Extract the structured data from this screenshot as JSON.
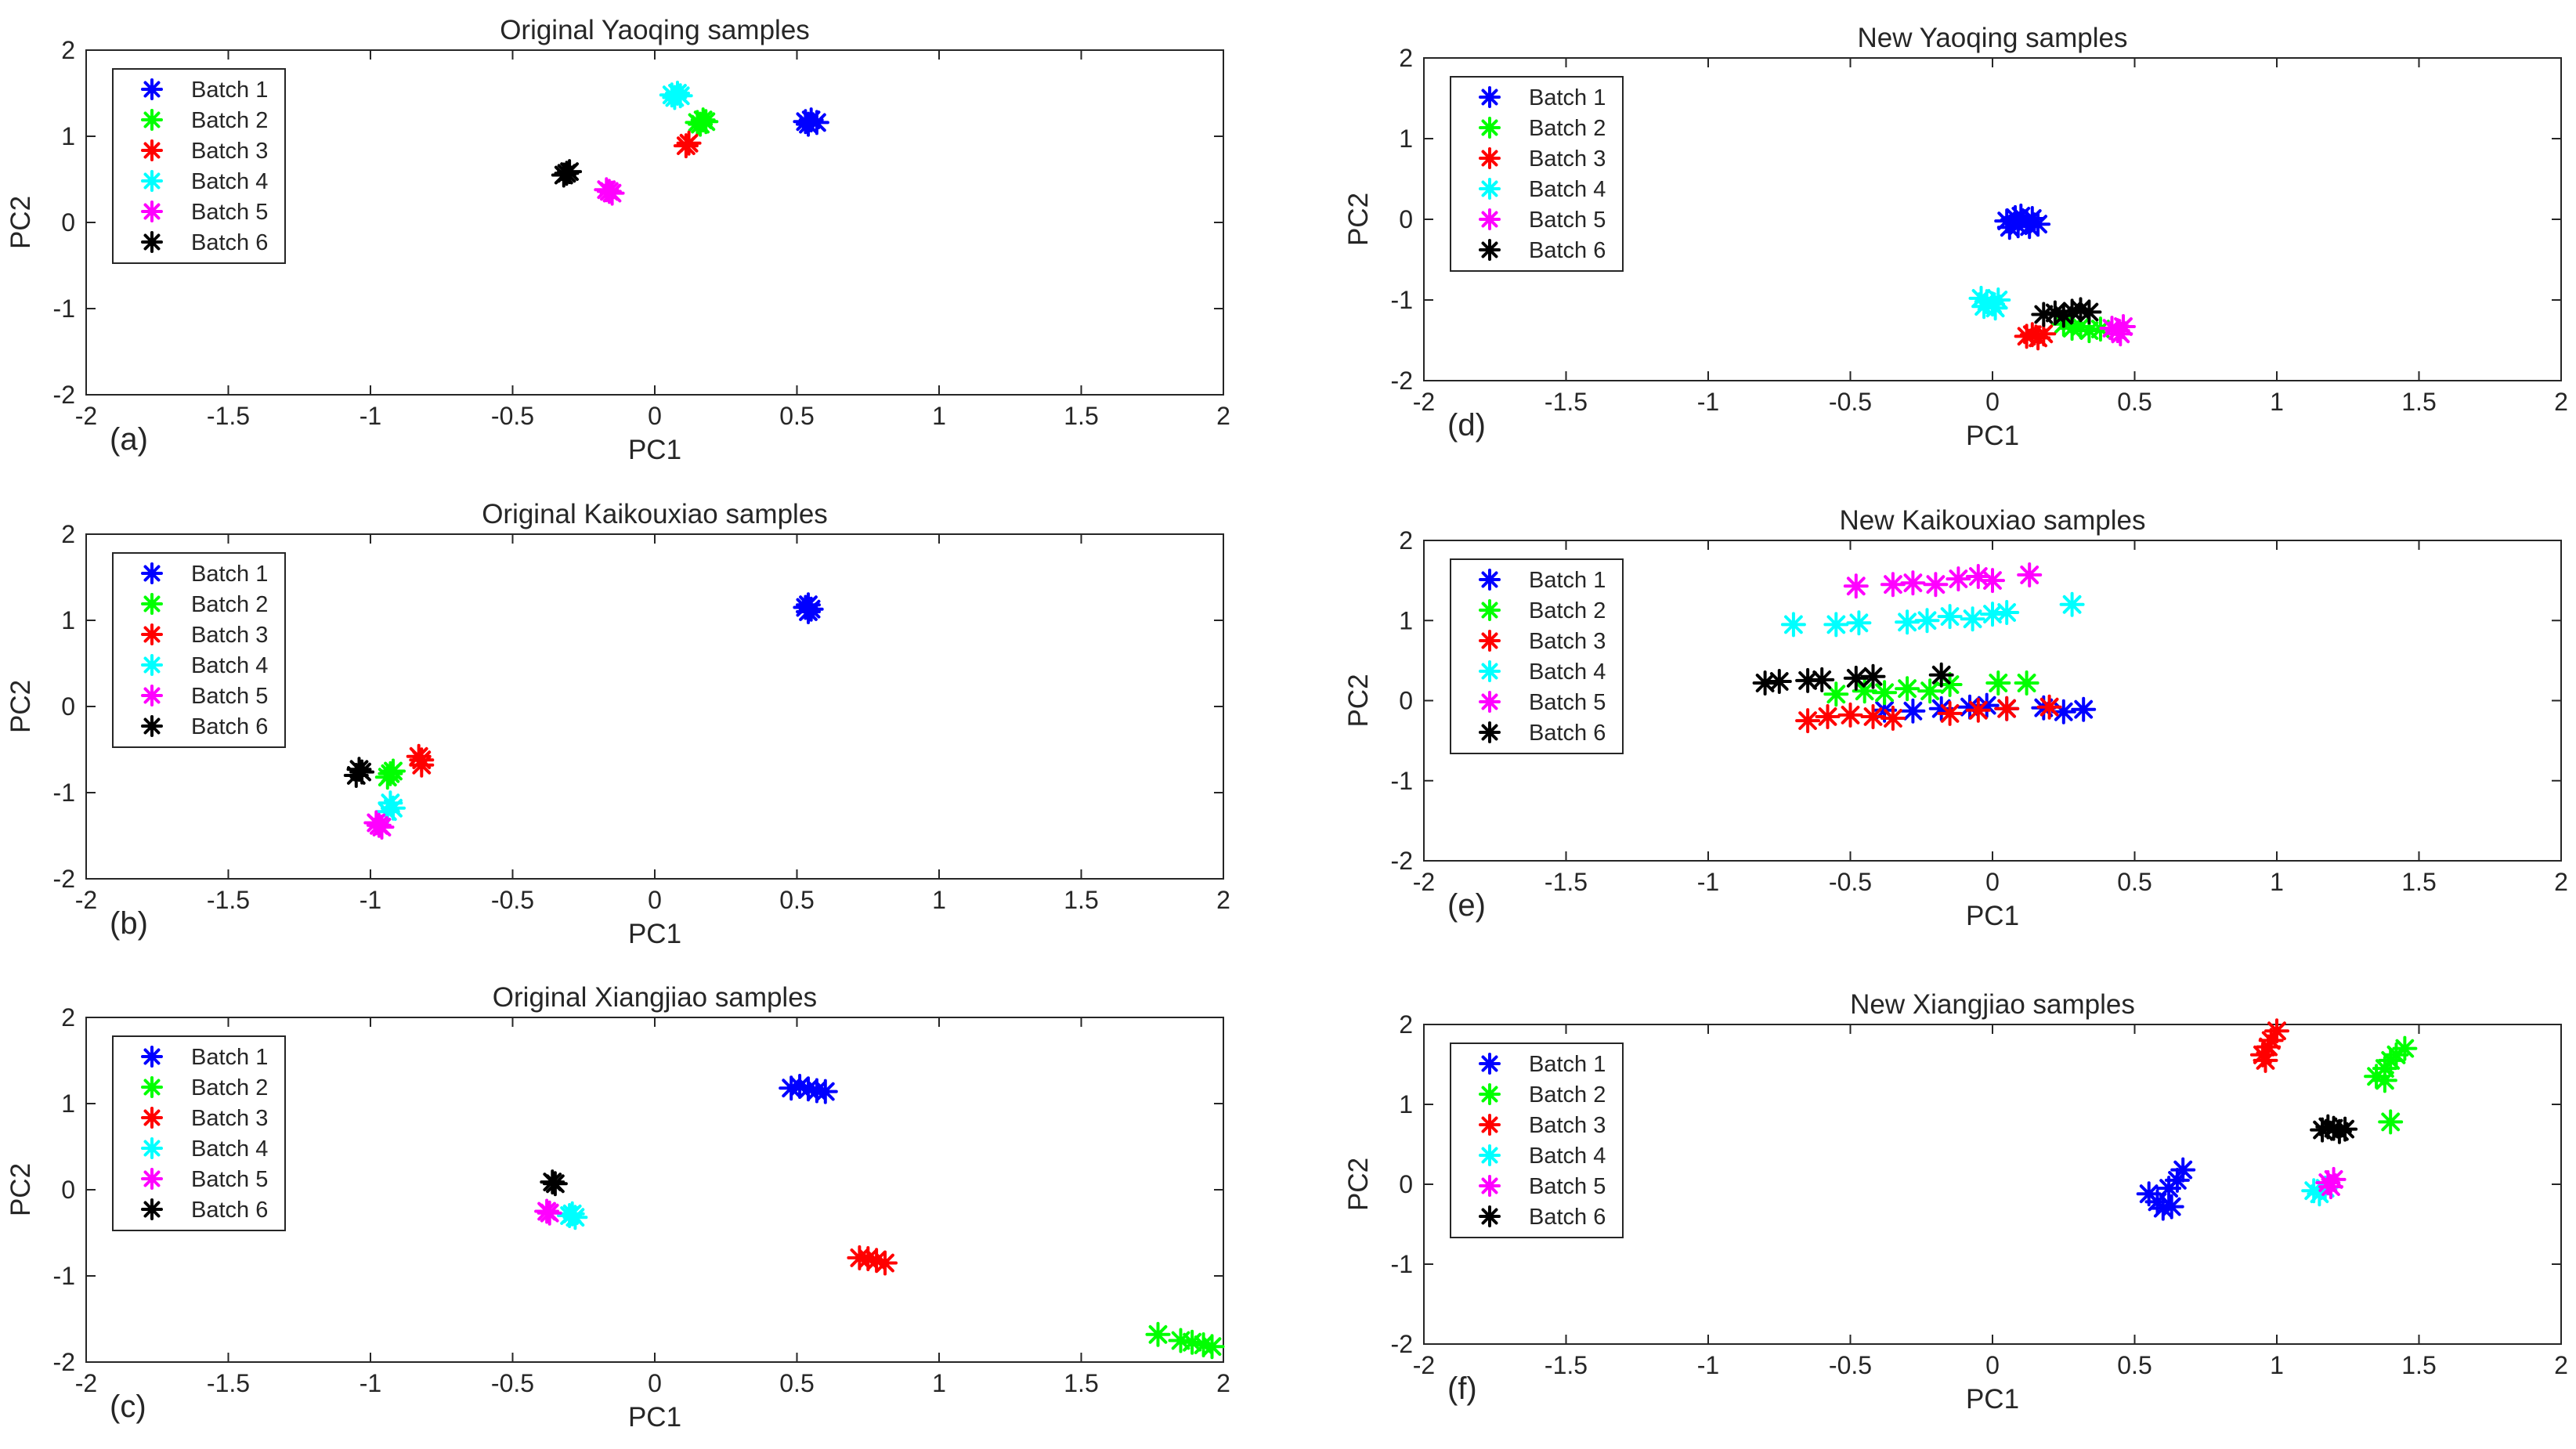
{
  "chart_data": [
    {
      "panel_label": "(a)",
      "type": "scatter",
      "title": "Original Yaoqing samples",
      "xlabel": "PC1",
      "ylabel": "PC2",
      "xlim": [
        -2,
        2
      ],
      "ylim": [
        -2,
        2
      ],
      "xticks": [
        "-2",
        "-1.5",
        "-1",
        "-0.5",
        "0",
        "0.5",
        "1",
        "1.5",
        "2"
      ],
      "yticks": [
        "-2",
        "-1",
        "0",
        "1",
        "2"
      ],
      "marker": "*",
      "legend_position": "top-left",
      "series": [
        {
          "name": "Batch 1",
          "color": "#0000ff",
          "points": [
            [
              0.53,
              1.17
            ],
            [
              0.55,
              1.19
            ],
            [
              0.54,
              1.14
            ],
            [
              0.57,
              1.16
            ]
          ]
        },
        {
          "name": "Batch 2",
          "color": "#00ff00",
          "points": [
            [
              0.15,
              1.16
            ],
            [
              0.17,
              1.19
            ],
            [
              0.16,
              1.14
            ],
            [
              0.18,
              1.17
            ]
          ]
        },
        {
          "name": "Batch 3",
          "color": "#ff0000",
          "points": [
            [
              0.11,
              0.89
            ],
            [
              0.12,
              0.92
            ]
          ]
        },
        {
          "name": "Batch 4",
          "color": "#00ffff",
          "points": [
            [
              0.06,
              1.48
            ],
            [
              0.08,
              1.5
            ],
            [
              0.07,
              1.45
            ],
            [
              0.09,
              1.47
            ]
          ]
        },
        {
          "name": "Batch 5",
          "color": "#ff00ff",
          "points": [
            [
              -0.16,
              0.36
            ],
            [
              -0.15,
              0.34
            ],
            [
              -0.17,
              0.38
            ]
          ]
        },
        {
          "name": "Batch 6",
          "color": "#000000",
          "points": [
            [
              -0.31,
              0.57
            ],
            [
              -0.3,
              0.59
            ],
            [
              -0.32,
              0.55
            ]
          ]
        }
      ]
    },
    {
      "panel_label": "(b)",
      "type": "scatter",
      "title": "Original Kaikouxiao samples",
      "xlabel": "PC1",
      "ylabel": "PC2",
      "xlim": [
        -2,
        2
      ],
      "ylim": [
        -2,
        2
      ],
      "xticks": [
        "-2",
        "-1.5",
        "-1",
        "-0.5",
        "0",
        "0.5",
        "1",
        "1.5",
        "2"
      ],
      "yticks": [
        "-2",
        "-1",
        "0",
        "1",
        "2"
      ],
      "marker": "*",
      "legend_position": "top-left",
      "series": [
        {
          "name": "Batch 1",
          "color": "#0000ff",
          "points": [
            [
              0.53,
              1.15
            ],
            [
              0.54,
              1.18
            ],
            [
              0.55,
              1.13
            ],
            [
              0.54,
              1.1
            ]
          ]
        },
        {
          "name": "Batch 2",
          "color": "#00ff00",
          "points": [
            [
              -0.93,
              -0.78
            ],
            [
              -0.92,
              -0.75
            ],
            [
              -0.94,
              -0.82
            ]
          ]
        },
        {
          "name": "Batch 3",
          "color": "#ff0000",
          "points": [
            [
              -0.82,
              -0.62
            ],
            [
              -0.82,
              -0.68
            ],
            [
              -0.83,
              -0.58
            ]
          ]
        },
        {
          "name": "Batch 4",
          "color": "#00ffff",
          "points": [
            [
              -0.93,
              -1.12
            ],
            [
              -0.92,
              -1.18
            ],
            [
              -0.94,
              -1.22
            ]
          ]
        },
        {
          "name": "Batch 5",
          "color": "#ff00ff",
          "points": [
            [
              -0.97,
              -1.38
            ],
            [
              -0.96,
              -1.4
            ],
            [
              -0.98,
              -1.35
            ]
          ]
        },
        {
          "name": "Batch 6",
          "color": "#000000",
          "points": [
            [
              -1.04,
              -0.73
            ],
            [
              -1.03,
              -0.76
            ],
            [
              -1.05,
              -0.8
            ]
          ]
        }
      ]
    },
    {
      "panel_label": "(c)",
      "type": "scatter",
      "title": "Original Xiangjiao samples",
      "xlabel": "PC1",
      "ylabel": "PC2",
      "xlim": [
        -2,
        2
      ],
      "ylim": [
        -2,
        2
      ],
      "xticks": [
        "-2",
        "-1.5",
        "-1",
        "-0.5",
        "0",
        "0.5",
        "1",
        "1.5",
        "2"
      ],
      "yticks": [
        "-2",
        "-1",
        "0",
        "1",
        "2"
      ],
      "marker": "*",
      "legend_position": "top-left",
      "series": [
        {
          "name": "Batch 1",
          "color": "#0000ff",
          "points": [
            [
              0.48,
              1.18
            ],
            [
              0.51,
              1.2
            ],
            [
              0.54,
              1.17
            ],
            [
              0.57,
              1.15
            ],
            [
              0.6,
              1.14
            ]
          ]
        },
        {
          "name": "Batch 2",
          "color": "#00ff00",
          "points": [
            [
              1.77,
              -1.68
            ],
            [
              1.85,
              -1.75
            ],
            [
              1.89,
              -1.77
            ],
            [
              1.93,
              -1.8
            ],
            [
              1.96,
              -1.82
            ]
          ]
        },
        {
          "name": "Batch 3",
          "color": "#ff0000",
          "points": [
            [
              0.72,
              -0.79
            ],
            [
              0.75,
              -0.8
            ],
            [
              0.78,
              -0.82
            ],
            [
              0.81,
              -0.85
            ]
          ]
        },
        {
          "name": "Batch 4",
          "color": "#00ffff",
          "points": [
            [
              -0.3,
              -0.3
            ],
            [
              -0.28,
              -0.32
            ],
            [
              -0.29,
              -0.28
            ]
          ]
        },
        {
          "name": "Batch 5",
          "color": "#ff00ff",
          "points": [
            [
              -0.38,
              -0.25
            ],
            [
              -0.37,
              -0.27
            ]
          ]
        },
        {
          "name": "Batch 6",
          "color": "#000000",
          "points": [
            [
              -0.35,
              0.07
            ],
            [
              -0.36,
              0.09
            ]
          ]
        }
      ]
    },
    {
      "panel_label": "(d)",
      "type": "scatter",
      "title": "New Yaoqing samples",
      "xlabel": "PC1",
      "ylabel": "PC2",
      "xlim": [
        -2,
        2
      ],
      "ylim": [
        -2,
        2
      ],
      "xticks": [
        "-2",
        "-1.5",
        "-1",
        "-0.5",
        "0",
        "0.5",
        "1",
        "1.5",
        "2"
      ],
      "yticks": [
        "-2",
        "-1",
        "0",
        "1",
        "2"
      ],
      "marker": "*",
      "legend_position": "top-left",
      "series": [
        {
          "name": "Batch 1",
          "color": "#0000ff",
          "points": [
            [
              0.05,
              -0.02
            ],
            [
              0.08,
              0.02
            ],
            [
              0.1,
              0.04
            ],
            [
              0.12,
              -0.03
            ],
            [
              0.14,
              0.01
            ],
            [
              0.16,
              -0.06
            ],
            [
              0.09,
              -0.08
            ],
            [
              0.06,
              -0.1
            ],
            [
              0.13,
              -0.09
            ]
          ]
        },
        {
          "name": "Batch 2",
          "color": "#00ff00",
          "points": [
            [
              0.25,
              -1.3
            ],
            [
              0.28,
              -1.35
            ],
            [
              0.31,
              -1.33
            ],
            [
              0.34,
              -1.38
            ],
            [
              0.38,
              -1.36
            ]
          ]
        },
        {
          "name": "Batch 3",
          "color": "#ff0000",
          "points": [
            [
              0.12,
              -1.45
            ],
            [
              0.14,
              -1.43
            ],
            [
              0.16,
              -1.47
            ],
            [
              0.18,
              -1.42
            ]
          ]
        },
        {
          "name": "Batch 4",
          "color": "#00ffff",
          "points": [
            [
              -0.04,
              -0.98
            ],
            [
              -0.02,
              -1.02
            ],
            [
              0.0,
              -1.05
            ],
            [
              0.02,
              -1.0
            ],
            [
              -0.03,
              -1.08
            ],
            [
              0.01,
              -1.1
            ]
          ]
        },
        {
          "name": "Batch 5",
          "color": "#ff00ff",
          "points": [
            [
              0.42,
              -1.35
            ],
            [
              0.44,
              -1.38
            ],
            [
              0.46,
              -1.33
            ],
            [
              0.45,
              -1.42
            ]
          ]
        },
        {
          "name": "Batch 6",
          "color": "#000000",
          "points": [
            [
              0.18,
              -1.18
            ],
            [
              0.22,
              -1.16
            ],
            [
              0.25,
              -1.19
            ],
            [
              0.28,
              -1.14
            ],
            [
              0.31,
              -1.12
            ],
            [
              0.34,
              -1.15
            ]
          ]
        }
      ]
    },
    {
      "panel_label": "(e)",
      "type": "scatter",
      "title": "New Kaikouxiao samples",
      "xlabel": "PC1",
      "ylabel": "PC2",
      "xlim": [
        -2,
        2
      ],
      "ylim": [
        -2,
        2
      ],
      "xticks": [
        "-2",
        "-1.5",
        "-1",
        "-0.5",
        "0",
        "0.5",
        "1",
        "1.5",
        "2"
      ],
      "yticks": [
        "-2",
        "-1",
        "0",
        "1",
        "2"
      ],
      "marker": "*",
      "legend_position": "top-left",
      "series": [
        {
          "name": "Batch 1",
          "color": "#0000ff",
          "points": [
            [
              -0.38,
              -0.12
            ],
            [
              -0.28,
              -0.13
            ],
            [
              -0.18,
              -0.1
            ],
            [
              -0.08,
              -0.08
            ],
            [
              -0.02,
              -0.06
            ],
            [
              0.05,
              -0.1
            ],
            [
              0.18,
              -0.09
            ],
            [
              0.25,
              -0.14
            ],
            [
              0.32,
              -0.11
            ]
          ]
        },
        {
          "name": "Batch 2",
          "color": "#00ff00",
          "points": [
            [
              -0.55,
              0.08
            ],
            [
              -0.45,
              0.12
            ],
            [
              -0.38,
              0.1
            ],
            [
              -0.3,
              0.15
            ],
            [
              -0.22,
              0.12
            ],
            [
              -0.15,
              0.2
            ],
            [
              0.02,
              0.22
            ],
            [
              0.12,
              0.22
            ]
          ]
        },
        {
          "name": "Batch 3",
          "color": "#ff0000",
          "points": [
            [
              -0.65,
              -0.25
            ],
            [
              -0.58,
              -0.2
            ],
            [
              -0.5,
              -0.18
            ],
            [
              -0.42,
              -0.2
            ],
            [
              -0.35,
              -0.22
            ],
            [
              -0.15,
              -0.16
            ],
            [
              -0.05,
              -0.12
            ],
            [
              0.05,
              -0.1
            ],
            [
              0.2,
              -0.08
            ]
          ]
        },
        {
          "name": "Batch 4",
          "color": "#00ffff",
          "points": [
            [
              -0.7,
              0.95
            ],
            [
              -0.55,
              0.95
            ],
            [
              -0.47,
              0.97
            ],
            [
              -0.3,
              0.98
            ],
            [
              -0.23,
              1.0
            ],
            [
              -0.15,
              1.05
            ],
            [
              -0.07,
              1.02
            ],
            [
              0.0,
              1.08
            ],
            [
              0.05,
              1.1
            ],
            [
              0.28,
              1.2
            ]
          ]
        },
        {
          "name": "Batch 5",
          "color": "#ff00ff",
          "points": [
            [
              -0.48,
              1.43
            ],
            [
              -0.35,
              1.45
            ],
            [
              -0.28,
              1.47
            ],
            [
              -0.2,
              1.45
            ],
            [
              -0.12,
              1.52
            ],
            [
              -0.05,
              1.55
            ],
            [
              0.0,
              1.5
            ],
            [
              0.13,
              1.57
            ]
          ]
        },
        {
          "name": "Batch 6",
          "color": "#000000",
          "points": [
            [
              -0.8,
              0.22
            ],
            [
              -0.75,
              0.24
            ],
            [
              -0.65,
              0.25
            ],
            [
              -0.6,
              0.26
            ],
            [
              -0.48,
              0.28
            ],
            [
              -0.42,
              0.3
            ],
            [
              -0.18,
              0.32
            ]
          ]
        }
      ]
    },
    {
      "panel_label": "(f)",
      "type": "scatter",
      "title": "New Xiangjiao samples",
      "xlabel": "PC1",
      "ylabel": "PC2",
      "xlim": [
        -2,
        2
      ],
      "ylim": [
        -2,
        2
      ],
      "xticks": [
        "-2",
        "-1.5",
        "-1",
        "-0.5",
        "0",
        "0.5",
        "1",
        "1.5",
        "2"
      ],
      "yticks": [
        "-2",
        "-1",
        "0",
        "1",
        "2"
      ],
      "marker": "*",
      "legend_position": "top-left",
      "series": [
        {
          "name": "Batch 1",
          "color": "#0000ff",
          "points": [
            [
              0.55,
              -0.12
            ],
            [
              0.58,
              -0.22
            ],
            [
              0.6,
              -0.3
            ],
            [
              0.62,
              -0.05
            ],
            [
              0.65,
              0.05
            ],
            [
              0.67,
              0.18
            ],
            [
              0.63,
              -0.28
            ]
          ]
        },
        {
          "name": "Batch 2",
          "color": "#00ff00",
          "points": [
            [
              1.35,
              1.35
            ],
            [
              1.38,
              1.45
            ],
            [
              1.4,
              1.55
            ],
            [
              1.42,
              1.62
            ],
            [
              1.45,
              1.7
            ],
            [
              1.38,
              1.3
            ],
            [
              1.4,
              0.78
            ]
          ]
        },
        {
          "name": "Batch 3",
          "color": "#ff0000",
          "points": [
            [
              0.95,
              1.62
            ],
            [
              0.97,
              1.72
            ],
            [
              0.98,
              1.8
            ],
            [
              1.0,
              1.92
            ],
            [
              0.96,
              1.55
            ]
          ]
        },
        {
          "name": "Batch 4",
          "color": "#00ffff",
          "points": [
            [
              1.13,
              -0.08
            ],
            [
              1.15,
              -0.12
            ],
            [
              1.17,
              -0.05
            ]
          ]
        },
        {
          "name": "Batch 5",
          "color": "#ff00ff",
          "points": [
            [
              1.18,
              0.02
            ],
            [
              1.2,
              0.06
            ],
            [
              1.19,
              -0.03
            ]
          ]
        },
        {
          "name": "Batch 6",
          "color": "#000000",
          "points": [
            [
              1.16,
              0.68
            ],
            [
              1.18,
              0.72
            ],
            [
              1.2,
              0.7
            ],
            [
              1.22,
              0.66
            ],
            [
              1.24,
              0.69
            ]
          ]
        }
      ]
    }
  ]
}
